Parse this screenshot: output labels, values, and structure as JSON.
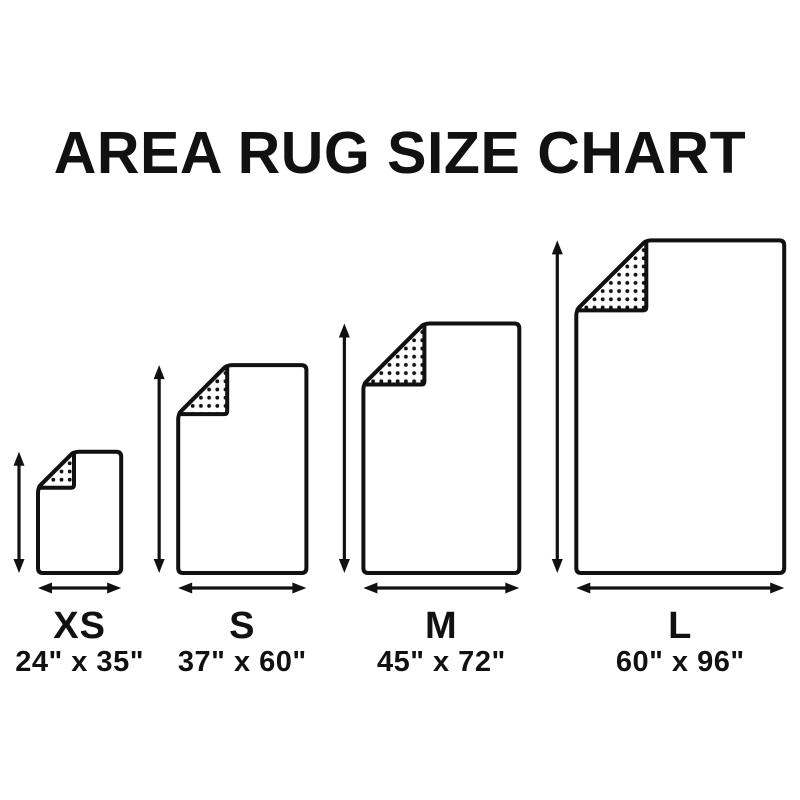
{
  "title": "AREA RUG SIZE CHART",
  "colors": {
    "ink": "#111111",
    "background": "#ffffff",
    "rug_fill": "#ffffff"
  },
  "rugs": [
    {
      "id": "xs",
      "label": "XS",
      "dimensions": "24\" x 35\"",
      "width_in": 24,
      "height_in": 35
    },
    {
      "id": "s",
      "label": "S",
      "dimensions": "37\" x 60\"",
      "width_in": 37,
      "height_in": 60
    },
    {
      "id": "m",
      "label": "M",
      "dimensions": "45\" x 72\"",
      "width_in": 45,
      "height_in": 72
    },
    {
      "id": "l",
      "label": "L",
      "dimensions": "60\" x 96\"",
      "width_in": 60,
      "height_in": 96
    }
  ]
}
